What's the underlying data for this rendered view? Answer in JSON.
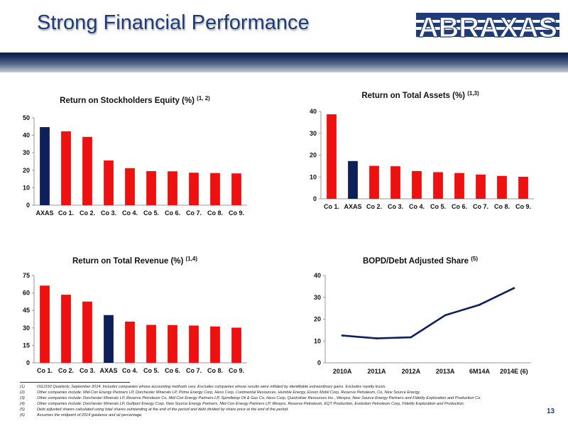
{
  "page": {
    "title": "Strong Financial Performance",
    "logo_text": "ABRAXAS",
    "page_number": "13",
    "colors": {
      "title": "#1f3c78",
      "highlight": "#0f1f5a",
      "peer": "#ee1111",
      "line": "#0f1f5a",
      "logo": "#1f3c78"
    }
  },
  "chart_data": [
    {
      "type": "bar",
      "title": "Return on Stockholders Equity (%)",
      "title_superscript": "(1, 2)",
      "categories": [
        "AXAS",
        "Co 1.",
        "Co 2.",
        "Co 3.",
        "Co 4.",
        "Co 5.",
        "Co 6.",
        "Co 7.",
        "Co 8.",
        "Co 9."
      ],
      "values": [
        44.7,
        42.3,
        39.1,
        25.6,
        21.2,
        19.5,
        19.4,
        18.6,
        18.4,
        18.2
      ],
      "highlight": "AXAS",
      "ylim": [
        0,
        50
      ],
      "yticks": [
        0,
        10,
        20,
        30,
        40,
        50
      ],
      "grid": false,
      "legend": "none"
    },
    {
      "type": "bar",
      "title": "Return on Total Assets (%)",
      "title_superscript": "(1,3)",
      "categories": [
        "Co 1.",
        "AXAS",
        "Co 2.",
        "Co 3.",
        "Co 4.",
        "Co 5.",
        "Co 6.",
        "Co 7.",
        "Co 8.",
        "Co 9."
      ],
      "values": [
        38.7,
        17.3,
        15.1,
        14.9,
        12.7,
        12.2,
        11.8,
        11.1,
        10.5,
        10.1
      ],
      "highlight": "AXAS",
      "ylim": [
        0,
        40
      ],
      "yticks": [
        0,
        10,
        20,
        30,
        40
      ],
      "grid": false,
      "legend": "none"
    },
    {
      "type": "bar",
      "title": "Return on Total Revenue (%)",
      "title_superscript": "(1,4)",
      "categories": [
        "Co 1.",
        "Co 2.",
        "Co 3.",
        "AXAS",
        "Co 4.",
        "Co 5.",
        "Co 6.",
        "Co 7.",
        "Co 8.",
        "Co 9."
      ],
      "values": [
        66.3,
        58.5,
        52.6,
        41.0,
        35.4,
        32.6,
        32.4,
        32.0,
        31.2,
        30.2
      ],
      "highlight": "AXAS",
      "ylim": [
        0,
        75
      ],
      "yticks": [
        0,
        15,
        30,
        45,
        60,
        75
      ],
      "grid": false,
      "legend": "none"
    },
    {
      "type": "line",
      "title": "BOPD/Debt Adjusted Share",
      "title_superscript": "(5)",
      "categories": [
        "2010A",
        "2011A",
        "2012A",
        "2013A",
        "6M14A",
        "2014E"
      ],
      "category_suffix": [
        "",
        "",
        "",
        "",
        "",
        "(6)"
      ],
      "values": [
        12.5,
        11.2,
        11.7,
        21.8,
        26.6,
        34.2
      ],
      "ylim": [
        0,
        40
      ],
      "yticks": [
        0,
        10,
        20,
        30,
        40
      ],
      "grid": false,
      "legend": "none"
    }
  ],
  "footnotes": [
    {
      "num": "(1)",
      "text": "OGJ150 Quarterly, September 2014.  Includes companies whose accounting methods vary.  Excludes companies whose results were inflated by identifiable extraordinary gains.  Excludes royalty trusts."
    },
    {
      "num": "(2)",
      "text": "Other companies include: Mid-Con Energy Partners LP, Dorchester Minerals LP, Prime Energy Corp, Hess Corp, Continental Resources, Humble Energy, Exxon Mobil Corp, Reserve Petroleum, Co, New Source Energy."
    },
    {
      "num": "(3)",
      "text": "Other companies include: Dorchester Minerals LP, Reserve Petroleum Co, Mid-Con Energy Partners LP, Spindletop Oil & Gas Co, Hess Corp, Quicksilver Resources Inc., Wexpro, New Source Energy Partners and Fidelity Exploration and Production Co."
    },
    {
      "num": "(4)",
      "text": "Other companies include: Dorchester Minerals LP, Gulfport Energy Corp, New Source Energy Partners, Mid-Con Energy Partners LP, Wexpro, Reserve Petroleum, EQT Production, Evolution Petroleum Corp, Fidelity Exploration and Production."
    },
    {
      "num": "(5)",
      "text": "Debt adjusted shares calculated using total shares outstanding at the end of the period and debt divided by share price at the end of the period."
    },
    {
      "num": "(6)",
      "text": "Assumes the midpoint of 2014 guidance and oil percentage."
    }
  ]
}
